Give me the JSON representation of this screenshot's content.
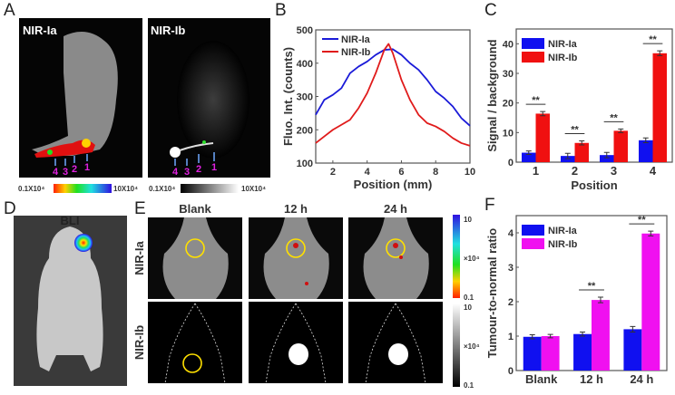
{
  "panels": {
    "a": "A",
    "b": "B",
    "c": "C",
    "d": "D",
    "e": "E",
    "f": "F"
  },
  "panel_a": {
    "left_title": "NIR-Ia",
    "right_title": "NIR-Ib",
    "position_labels": [
      "4",
      "3",
      "2",
      "1"
    ],
    "colorbar_color": {
      "min": "0.1X10⁴",
      "max": "10X10⁴"
    },
    "colorbar_gray": {
      "min": "0.1X10⁴",
      "max": "10X10⁴"
    }
  },
  "panel_d": {
    "title": "BLI"
  },
  "panel_e": {
    "columns": [
      "Blank",
      "12 h",
      "24 h"
    ],
    "rows": [
      "NIR-Ia",
      "NIR-Ib"
    ],
    "colorbar_color": {
      "max": "10",
      "unit": "×10⁴",
      "min": "0.1"
    },
    "colorbar_gray": {
      "max": "10",
      "unit": "×10⁴",
      "min": "0.1"
    },
    "ring_color": "#ffe000"
  },
  "chart_data": [
    {
      "id": "B",
      "type": "line",
      "xlabel": "Position (mm)",
      "ylabel": "Fluo. Int. (counts)",
      "xlim": [
        1,
        10
      ],
      "ylim": [
        100,
        500
      ],
      "xticks": [
        2,
        4,
        6,
        8,
        10
      ],
      "yticks": [
        100,
        200,
        300,
        400,
        500
      ],
      "legend": "top-left",
      "series": [
        {
          "name": "NIR-Ia",
          "color": "#1a1ad8",
          "x": [
            1,
            1.5,
            2,
            2.5,
            3,
            3.5,
            4,
            4.5,
            5,
            5.5,
            6,
            6.5,
            7,
            7.5,
            8,
            8.5,
            9,
            9.5,
            10
          ],
          "y": [
            245,
            290,
            305,
            325,
            370,
            390,
            405,
            425,
            440,
            442,
            425,
            400,
            380,
            350,
            315,
            295,
            270,
            235,
            212
          ]
        },
        {
          "name": "NIR-Ib",
          "color": "#e01b1b",
          "x": [
            1,
            1.5,
            2,
            2.5,
            3,
            3.5,
            4,
            4.5,
            5,
            5.25,
            5.5,
            6,
            6.5,
            7,
            7.5,
            8,
            8.5,
            9,
            9.5,
            10
          ],
          "y": [
            160,
            180,
            200,
            215,
            230,
            265,
            310,
            370,
            440,
            458,
            430,
            350,
            290,
            245,
            220,
            210,
            195,
            175,
            160,
            152
          ]
        }
      ]
    },
    {
      "id": "C",
      "type": "bar",
      "xlabel": "Position",
      "ylabel": "Signal / background",
      "categories": [
        "1",
        "2",
        "3",
        "4"
      ],
      "ylim": [
        0,
        45
      ],
      "yticks": [
        0,
        10,
        20,
        30,
        40
      ],
      "legend": "top-left",
      "significance": "**",
      "series": [
        {
          "name": "NIR-Ia",
          "color": "#1010f0",
          "values": [
            3.2,
            2.1,
            2.4,
            7.4
          ],
          "errors": [
            0.6,
            0.9,
            0.9,
            0.8
          ]
        },
        {
          "name": "NIR-Ib",
          "color": "#f01010",
          "values": [
            16.4,
            6.5,
            10.6,
            36.8
          ],
          "errors": [
            0.7,
            0.7,
            0.6,
            0.8
          ]
        }
      ]
    },
    {
      "id": "F",
      "type": "bar",
      "xlabel": "",
      "ylabel": "Tumour-to-normal ratio",
      "categories": [
        "Blank",
        "12 h",
        "24 h"
      ],
      "ylim": [
        0,
        4.5
      ],
      "yticks": [
        0,
        1,
        2,
        3,
        4
      ],
      "legend": "top-left",
      "significance": "**",
      "significant": [
        false,
        true,
        true
      ],
      "series": [
        {
          "name": "NIR-Ia",
          "color": "#1010f0",
          "values": [
            0.98,
            1.06,
            1.2
          ],
          "errors": [
            0.06,
            0.06,
            0.08
          ]
        },
        {
          "name": "NIR-Ib",
          "color": "#f010f0",
          "values": [
            1.0,
            2.05,
            3.98
          ],
          "errors": [
            0.05,
            0.08,
            0.07
          ]
        }
      ]
    }
  ]
}
